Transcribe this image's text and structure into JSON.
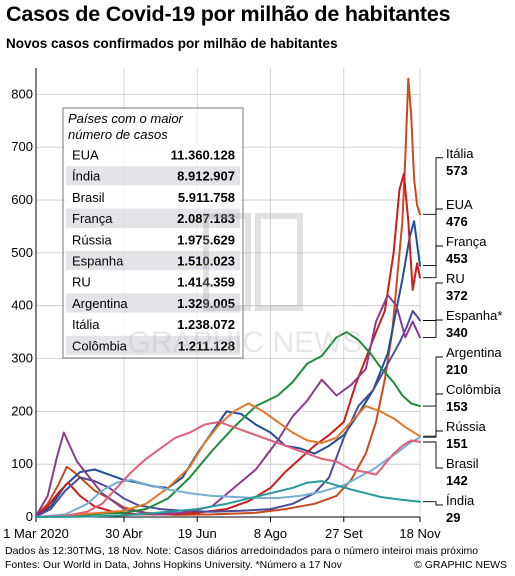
{
  "header": {
    "title": "Casos de Covid-19 por milhão de habitantes",
    "subtitle": "Novos casos confirmados por milhão de habitantes"
  },
  "table": {
    "title_line1": "Países com o maior",
    "title_line2": "número de casos",
    "rows": [
      {
        "country": "EUA",
        "cases": "11.360.128"
      },
      {
        "country": "Índia",
        "cases": "8.912.907"
      },
      {
        "country": "Brasil",
        "cases": "5.911.758"
      },
      {
        "country": "França",
        "cases": "2.087.183"
      },
      {
        "country": "Rússia",
        "cases": "1.975.629"
      },
      {
        "country": "Espanha",
        "cases": "1.510.023"
      },
      {
        "country": "RU",
        "cases": "1.414.359"
      },
      {
        "country": "Argentina",
        "cases": "1.329.005"
      },
      {
        "country": "Itália",
        "cases": "1.238.072"
      },
      {
        "country": "Colômbia",
        "cases": "1.211.128"
      }
    ]
  },
  "watermark": "GRAPHIC NEWS",
  "footer": {
    "line1": "Dados às 12:30TMG, 18 Nov. Note: Casos diários arredoindados para o número inteiroi mais próximo",
    "line2": "Fontes: Our World in Data, Johns Hopkins University. *Número a 17 Nov",
    "brand": "© GRAPHIC NEWS"
  },
  "chart_data": {
    "type": "line",
    "title": "Casos de Covid-19 por milhão de habitantes",
    "ylabel": "Novos casos confirmados por milhão de habitantes",
    "ylim": [
      0,
      850
    ],
    "yticks": [
      0,
      100,
      200,
      300,
      400,
      500,
      600,
      700,
      800
    ],
    "x_domain_days": [
      0,
      262
    ],
    "x_ticks": [
      {
        "day": 0,
        "label": "1 Mar 2020"
      },
      {
        "day": 60,
        "label": "30 Abr"
      },
      {
        "day": 110,
        "label": "19 Jun"
      },
      {
        "day": 160,
        "label": "8 Ago"
      },
      {
        "day": 210,
        "label": "27 Set"
      },
      {
        "day": 262,
        "label": "18 Nov"
      }
    ],
    "grid": true,
    "series": [
      {
        "name": "Itália",
        "final_label": "573",
        "color": "#c84a1e",
        "points": [
          [
            0,
            3
          ],
          [
            8,
            25
          ],
          [
            15,
            60
          ],
          [
            21,
            95
          ],
          [
            26,
            85
          ],
          [
            32,
            70
          ],
          [
            40,
            50
          ],
          [
            50,
            35
          ],
          [
            60,
            18
          ],
          [
            75,
            8
          ],
          [
            95,
            4
          ],
          [
            120,
            5
          ],
          [
            150,
            8
          ],
          [
            170,
            15
          ],
          [
            190,
            25
          ],
          [
            205,
            40
          ],
          [
            215,
            70
          ],
          [
            225,
            120
          ],
          [
            232,
            180
          ],
          [
            238,
            260
          ],
          [
            243,
            350
          ],
          [
            247,
            470
          ],
          [
            250,
            560
          ],
          [
            252,
            680
          ],
          [
            254,
            830
          ],
          [
            256,
            760
          ],
          [
            258,
            640
          ],
          [
            260,
            590
          ],
          [
            262,
            573
          ]
        ]
      },
      {
        "name": "EUA",
        "final_label": "476",
        "color": "#1f4e96",
        "points": [
          [
            0,
            1
          ],
          [
            10,
            20
          ],
          [
            20,
            60
          ],
          [
            30,
            85
          ],
          [
            40,
            90
          ],
          [
            50,
            80
          ],
          [
            60,
            70
          ],
          [
            70,
            65
          ],
          [
            80,
            58
          ],
          [
            90,
            55
          ],
          [
            100,
            75
          ],
          [
            110,
            120
          ],
          [
            120,
            160
          ],
          [
            130,
            200
          ],
          [
            140,
            195
          ],
          [
            150,
            175
          ],
          [
            160,
            160
          ],
          [
            170,
            135
          ],
          [
            180,
            130
          ],
          [
            190,
            120
          ],
          [
            200,
            135
          ],
          [
            210,
            155
          ],
          [
            220,
            195
          ],
          [
            230,
            240
          ],
          [
            240,
            310
          ],
          [
            245,
            380
          ],
          [
            250,
            450
          ],
          [
            255,
            530
          ],
          [
            258,
            560
          ],
          [
            262,
            476
          ]
        ]
      },
      {
        "name": "França",
        "final_label": "453",
        "color": "#c81e1e",
        "points": [
          [
            0,
            2
          ],
          [
            8,
            20
          ],
          [
            15,
            45
          ],
          [
            22,
            65
          ],
          [
            30,
            40
          ],
          [
            40,
            20
          ],
          [
            55,
            8
          ],
          [
            70,
            5
          ],
          [
            90,
            5
          ],
          [
            110,
            8
          ],
          [
            130,
            15
          ],
          [
            145,
            30
          ],
          [
            160,
            55
          ],
          [
            170,
            85
          ],
          [
            180,
            110
          ],
          [
            190,
            135
          ],
          [
            200,
            155
          ],
          [
            210,
            180
          ],
          [
            218,
            250
          ],
          [
            225,
            300
          ],
          [
            232,
            350
          ],
          [
            238,
            390
          ],
          [
            244,
            500
          ],
          [
            248,
            620
          ],
          [
            251,
            650
          ],
          [
            254,
            560
          ],
          [
            257,
            430
          ],
          [
            260,
            480
          ],
          [
            262,
            453
          ]
        ]
      },
      {
        "name": "RU",
        "final_label": "372",
        "color": "#4a4c9c",
        "points": [
          [
            0,
            1
          ],
          [
            10,
            15
          ],
          [
            20,
            50
          ],
          [
            30,
            75
          ],
          [
            40,
            68
          ],
          [
            50,
            55
          ],
          [
            60,
            35
          ],
          [
            70,
            22
          ],
          [
            85,
            15
          ],
          [
            100,
            12
          ],
          [
            120,
            10
          ],
          [
            140,
            12
          ],
          [
            160,
            15
          ],
          [
            175,
            25
          ],
          [
            190,
            45
          ],
          [
            200,
            75
          ],
          [
            210,
            150
          ],
          [
            220,
            210
          ],
          [
            230,
            240
          ],
          [
            240,
            290
          ],
          [
            248,
            330
          ],
          [
            253,
            360
          ],
          [
            257,
            390
          ],
          [
            260,
            380
          ],
          [
            262,
            372
          ]
        ]
      },
      {
        "name": "Espanha",
        "final_label": "340",
        "color": "#8c3c8c",
        "points": [
          [
            0,
            2
          ],
          [
            8,
            40
          ],
          [
            14,
            110
          ],
          [
            19,
            160
          ],
          [
            23,
            135
          ],
          [
            28,
            105
          ],
          [
            35,
            80
          ],
          [
            45,
            45
          ],
          [
            60,
            15
          ],
          [
            80,
            5
          ],
          [
            100,
            8
          ],
          [
            120,
            20
          ],
          [
            135,
            55
          ],
          [
            150,
            90
          ],
          [
            165,
            145
          ],
          [
            175,
            190
          ],
          [
            185,
            220
          ],
          [
            195,
            260
          ],
          [
            205,
            230
          ],
          [
            215,
            250
          ],
          [
            225,
            280
          ],
          [
            232,
            370
          ],
          [
            240,
            420
          ],
          [
            246,
            400
          ],
          [
            252,
            340
          ],
          [
            257,
            370
          ],
          [
            262,
            340
          ]
        ]
      },
      {
        "name": "Argentina",
        "final_label": "210",
        "color": "#1e8a3c",
        "points": [
          [
            0,
            0
          ],
          [
            25,
            3
          ],
          [
            45,
            6
          ],
          [
            60,
            8
          ],
          [
            75,
            15
          ],
          [
            90,
            35
          ],
          [
            105,
            75
          ],
          [
            120,
            125
          ],
          [
            135,
            170
          ],
          [
            150,
            210
          ],
          [
            165,
            230
          ],
          [
            175,
            255
          ],
          [
            185,
            290
          ],
          [
            195,
            305
          ],
          [
            205,
            340
          ],
          [
            212,
            350
          ],
          [
            220,
            335
          ],
          [
            228,
            310
          ],
          [
            236,
            280
          ],
          [
            244,
            255
          ],
          [
            250,
            230
          ],
          [
            256,
            215
          ],
          [
            262,
            210
          ]
        ]
      },
      {
        "name": "Colômbia",
        "final_label": "153",
        "color": "#e0782a",
        "points": [
          [
            0,
            0
          ],
          [
            25,
            4
          ],
          [
            45,
            8
          ],
          [
            60,
            12
          ],
          [
            75,
            25
          ],
          [
            90,
            55
          ],
          [
            105,
            95
          ],
          [
            115,
            140
          ],
          [
            125,
            175
          ],
          [
            135,
            200
          ],
          [
            145,
            215
          ],
          [
            155,
            200
          ],
          [
            165,
            180
          ],
          [
            175,
            160
          ],
          [
            185,
            145
          ],
          [
            195,
            140
          ],
          [
            205,
            150
          ],
          [
            215,
            180
          ],
          [
            225,
            210
          ],
          [
            235,
            200
          ],
          [
            245,
            185
          ],
          [
            252,
            170
          ],
          [
            258,
            160
          ],
          [
            262,
            153
          ]
        ]
      },
      {
        "name": "Rússia",
        "final_label": "151",
        "color": "#7aaed0",
        "points": [
          [
            0,
            0
          ],
          [
            20,
            5
          ],
          [
            35,
            25
          ],
          [
            45,
            50
          ],
          [
            55,
            65
          ],
          [
            65,
            70
          ],
          [
            75,
            62
          ],
          [
            90,
            52
          ],
          [
            105,
            45
          ],
          [
            120,
            40
          ],
          [
            135,
            38
          ],
          [
            150,
            36
          ],
          [
            165,
            36
          ],
          [
            180,
            40
          ],
          [
            195,
            48
          ],
          [
            210,
            60
          ],
          [
            220,
            75
          ],
          [
            230,
            90
          ],
          [
            240,
            110
          ],
          [
            248,
            125
          ],
          [
            255,
            140
          ],
          [
            262,
            151
          ]
        ]
      },
      {
        "name": "Brasil",
        "final_label": "142",
        "color": "#e0607a",
        "points": [
          [
            0,
            0
          ],
          [
            20,
            2
          ],
          [
            35,
            10
          ],
          [
            45,
            25
          ],
          [
            55,
            55
          ],
          [
            65,
            85
          ],
          [
            75,
            110
          ],
          [
            85,
            130
          ],
          [
            95,
            150
          ],
          [
            105,
            160
          ],
          [
            115,
            175
          ],
          [
            125,
            180
          ],
          [
            135,
            170
          ],
          [
            145,
            160
          ],
          [
            155,
            150
          ],
          [
            165,
            140
          ],
          [
            175,
            130
          ],
          [
            185,
            120
          ],
          [
            195,
            110
          ],
          [
            205,
            105
          ],
          [
            215,
            90
          ],
          [
            225,
            85
          ],
          [
            232,
            80
          ],
          [
            238,
            100
          ],
          [
            244,
            120
          ],
          [
            250,
            135
          ],
          [
            256,
            145
          ],
          [
            262,
            142
          ]
        ]
      },
      {
        "name": "Índia",
        "final_label": "29",
        "color": "#2a9a9a",
        "points": [
          [
            0,
            0
          ],
          [
            30,
            0.5
          ],
          [
            50,
            2
          ],
          [
            70,
            5
          ],
          [
            90,
            10
          ],
          [
            110,
            15
          ],
          [
            130,
            25
          ],
          [
            145,
            35
          ],
          [
            160,
            45
          ],
          [
            175,
            55
          ],
          [
            185,
            65
          ],
          [
            195,
            68
          ],
          [
            205,
            60
          ],
          [
            215,
            52
          ],
          [
            225,
            45
          ],
          [
            235,
            38
          ],
          [
            245,
            34
          ],
          [
            255,
            31
          ],
          [
            262,
            29
          ]
        ]
      }
    ]
  }
}
